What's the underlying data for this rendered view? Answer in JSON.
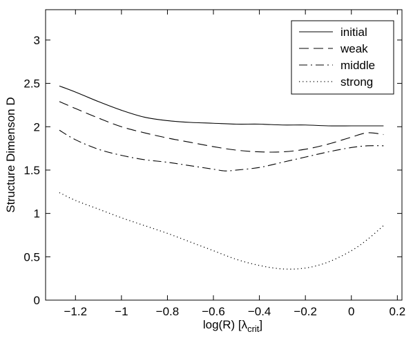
{
  "chart_data": {
    "type": "line",
    "xlabel": "log(R) [λ",
    "xlabel_sub": "crit",
    "xlabel_tail": "]",
    "ylabel": "Structure Dimenson D",
    "xlim": [
      -1.33,
      0.22
    ],
    "ylim": [
      0,
      3.35
    ],
    "xticks": [
      -1.2,
      -1,
      -0.8,
      -0.6,
      -0.4,
      -0.2,
      0,
      0.2
    ],
    "xtick_labels": [
      "−1.2",
      "−1",
      "−0.8",
      "−0.6",
      "−0.4",
      "−0.2",
      "0",
      "0.2"
    ],
    "yticks": [
      0,
      0.5,
      1,
      1.5,
      2,
      2.5,
      3
    ],
    "ytick_labels": [
      "0",
      "0.5",
      "1",
      "1.5",
      "2",
      "2.5",
      "3"
    ],
    "grid": false,
    "legend_position": "top-right",
    "series": [
      {
        "name": "initial",
        "dash": "solid",
        "x": [
          -1.27,
          -1.2,
          -1.1,
          -1.0,
          -0.9,
          -0.8,
          -0.7,
          -0.6,
          -0.5,
          -0.4,
          -0.3,
          -0.2,
          -0.1,
          0.0,
          0.07,
          0.14
        ],
        "y": [
          2.47,
          2.4,
          2.29,
          2.19,
          2.11,
          2.07,
          2.05,
          2.04,
          2.03,
          2.03,
          2.02,
          2.02,
          2.01,
          2.01,
          2.01,
          2.01
        ]
      },
      {
        "name": "weak",
        "dash": "dashed",
        "x": [
          -1.27,
          -1.2,
          -1.1,
          -1.0,
          -0.9,
          -0.8,
          -0.7,
          -0.6,
          -0.5,
          -0.4,
          -0.3,
          -0.2,
          -0.1,
          0.0,
          0.07,
          0.14
        ],
        "y": [
          2.29,
          2.21,
          2.1,
          2.0,
          1.93,
          1.87,
          1.82,
          1.77,
          1.73,
          1.71,
          1.71,
          1.74,
          1.8,
          1.88,
          1.93,
          1.91
        ]
      },
      {
        "name": "middle",
        "dash": "dashdot",
        "x": [
          -1.27,
          -1.2,
          -1.1,
          -1.0,
          -0.9,
          -0.8,
          -0.7,
          -0.6,
          -0.55,
          -0.5,
          -0.4,
          -0.3,
          -0.2,
          -0.1,
          0.0,
          0.07,
          0.14
        ],
        "y": [
          1.96,
          1.85,
          1.74,
          1.67,
          1.62,
          1.59,
          1.55,
          1.51,
          1.49,
          1.5,
          1.53,
          1.59,
          1.65,
          1.71,
          1.76,
          1.78,
          1.78
        ]
      },
      {
        "name": "strong",
        "dash": "dotted",
        "x": [
          -1.27,
          -1.2,
          -1.1,
          -1.0,
          -0.9,
          -0.8,
          -0.7,
          -0.6,
          -0.5,
          -0.4,
          -0.3,
          -0.2,
          -0.1,
          0.0,
          0.07,
          0.14
        ],
        "y": [
          1.24,
          1.15,
          1.05,
          0.95,
          0.86,
          0.77,
          0.67,
          0.57,
          0.47,
          0.4,
          0.36,
          0.37,
          0.44,
          0.57,
          0.7,
          0.86
        ]
      }
    ]
  }
}
